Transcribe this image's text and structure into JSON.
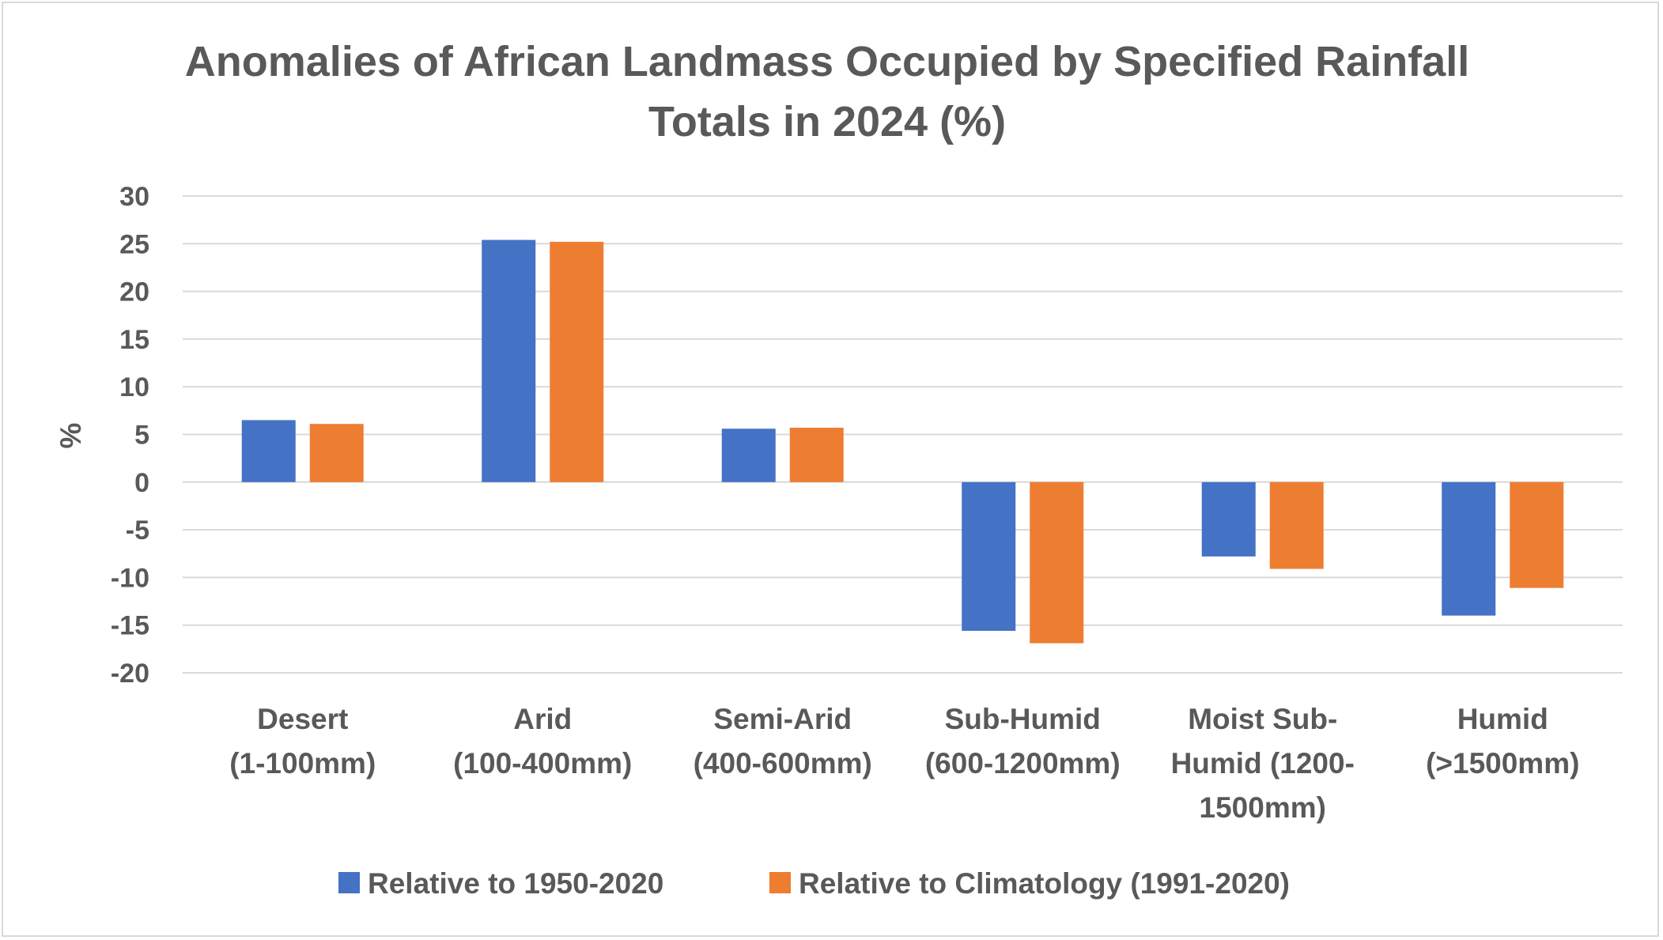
{
  "chart_data": {
    "type": "bar",
    "title_lines": [
      "Anomalies of African Landmass Occupied by Specified Rainfall",
      "Totals in 2024 (%)"
    ],
    "ylabel": "%",
    "xlabel": "",
    "ylim": [
      -20,
      30
    ],
    "yticks": [
      30,
      25,
      20,
      15,
      10,
      5,
      0,
      -5,
      -10,
      -15,
      -20
    ],
    "grid": true,
    "legend_position": "bottom",
    "categories": [
      [
        "Desert",
        "(1-100mm)"
      ],
      [
        "Arid",
        "(100-400mm)"
      ],
      [
        "Semi-Arid",
        "(400-600mm)"
      ],
      [
        "Sub-Humid",
        "(600-1200mm)"
      ],
      [
        "Moist Sub-",
        "Humid (1200-",
        "1500mm)"
      ],
      [
        "Humid",
        "(>1500mm)"
      ]
    ],
    "series": [
      {
        "name": "Relative to 1950-2020",
        "color": "#4472c4",
        "values": [
          6.5,
          25.4,
          5.6,
          -15.6,
          -7.8,
          -14.0
        ]
      },
      {
        "name": "Relative to Climatology (1991-2020)",
        "color": "#ed7d31",
        "values": [
          6.1,
          25.2,
          5.7,
          -16.9,
          -9.1,
          -11.1
        ]
      }
    ]
  }
}
